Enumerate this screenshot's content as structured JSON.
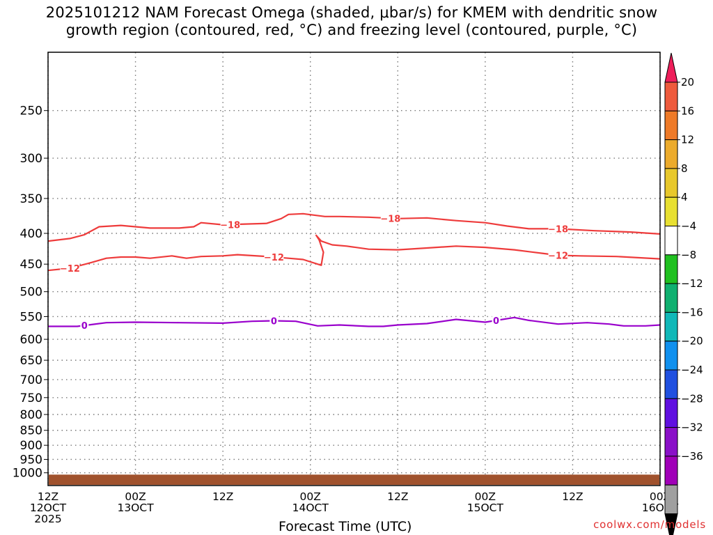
{
  "title": {
    "line1": "2025101212 NAM Forecast Omega (shaded, μbar/s) for KMEM with dendritic snow",
    "line2": "growth region (contoured, red, °C) and freezing level (contoured, purple, °C)"
  },
  "credit": "coolwx.com/models",
  "colors": {
    "snow_contour": "#ee3b3b",
    "freezing_contour": "#9900cc",
    "terrain": "#a0522d"
  },
  "chart_data": {
    "type": "line",
    "title": "2025101212 NAM Forecast Omega (shaded, μbar/s) for KMEM with dendritic snow growth region (contoured, red, °C) and freezing level (contoured, purple, °C)",
    "xlabel": "Forecast Time (UTC)",
    "ylabel": "",
    "xlim_hours": [
      0,
      84
    ],
    "yaxis": "pressure (hPa), log scale, inverted",
    "ylim": [
      1050,
      200
    ],
    "yticks": [
      250,
      300,
      350,
      400,
      450,
      500,
      550,
      600,
      650,
      700,
      750,
      800,
      850,
      900,
      950,
      1000
    ],
    "xticks": [
      {
        "hour": 0,
        "line1": "12Z",
        "line2": "12OCT",
        "line3": "2025"
      },
      {
        "hour": 12,
        "line1": "00Z",
        "line2": "13OCT",
        "line3": ""
      },
      {
        "hour": 24,
        "line1": "12Z",
        "line2": "",
        "line3": ""
      },
      {
        "hour": 36,
        "line1": "00Z",
        "line2": "14OCT",
        "line3": ""
      },
      {
        "hour": 48,
        "line1": "12Z",
        "line2": "",
        "line3": ""
      },
      {
        "hour": 60,
        "line1": "00Z",
        "line2": "15OCT",
        "line3": ""
      },
      {
        "hour": 72,
        "line1": "12Z",
        "line2": "",
        "line3": ""
      },
      {
        "hour": 84,
        "line1": "00Z",
        "line2": "16OCT",
        "line3": ""
      }
    ],
    "series": [
      {
        "name": "-18",
        "color": "#ee3b3b",
        "label": "−18",
        "x": [
          0,
          3,
          5,
          7,
          10,
          14,
          18,
          20,
          21,
          24,
          30,
          32,
          33,
          35,
          38,
          40,
          44,
          48,
          52,
          56,
          60,
          63,
          66,
          70,
          75,
          80,
          84
        ],
        "p": [
          412,
          408,
          402,
          390,
          388,
          392,
          392,
          390,
          384,
          387,
          385,
          378,
          372,
          371,
          375,
          375,
          376,
          378,
          377,
          381,
          384,
          389,
          393,
          393,
          396,
          398,
          401
        ],
        "labels_at": [
          25,
          47,
          70
        ]
      },
      {
        "name": "-12",
        "color": "#ee3b3b",
        "label": "−12",
        "x": [
          0,
          3,
          6,
          8,
          10,
          12,
          14,
          17,
          19,
          21,
          24,
          26,
          30,
          33,
          35,
          37.5,
          37.8,
          37.2,
          36.8,
          37.5,
          39,
          41,
          44,
          48,
          52,
          56,
          60,
          64,
          68,
          70,
          73,
          78,
          84
        ],
        "p": [
          461,
          457,
          447,
          440,
          438,
          438,
          440,
          436,
          440,
          437,
          436,
          434,
          437,
          440,
          442,
          452,
          430,
          410,
          403,
          412,
          418,
          420,
          425,
          426,
          423,
          420,
          422,
          426,
          432,
          435,
          436,
          437,
          441
        ],
        "labels_at": [
          3,
          31,
          70
        ]
      },
      {
        "name": "0",
        "color": "#9900cc",
        "label": "0",
        "x": [
          0,
          4,
          6,
          8,
          12,
          18,
          24,
          28,
          31,
          34,
          37,
          40,
          44,
          46,
          48,
          52,
          56,
          60,
          64,
          66,
          70,
          74,
          77,
          79,
          82,
          84
        ],
        "p": [
          571,
          571,
          567,
          563,
          562,
          563,
          564,
          560,
          559,
          560,
          570,
          568,
          571,
          571,
          568,
          565,
          556,
          562,
          552,
          558,
          566,
          563,
          566,
          570,
          570,
          568
        ],
        "labels_at": [
          5,
          31,
          61.5
        ]
      }
    ],
    "terrain": {
      "name": "surface",
      "top_p": 1007
    },
    "colorbar": {
      "ticks": [
        "20",
        "16",
        "12",
        "8",
        "4",
        "−4",
        "−8",
        "−12",
        "−16",
        "−20",
        "−24",
        "−28",
        "−32",
        "−36"
      ],
      "colors": [
        "#ee1e5a",
        "#ee5a3c",
        "#ee7a28",
        "#ecab2c",
        "#e8c82c",
        "#e8e032",
        "#ffffff",
        "#20c020",
        "#10b070",
        "#10b8b8",
        "#1090ee",
        "#2050e0",
        "#6010e0",
        "#8a10c8",
        "#a000b8",
        "#a0a0a0",
        "#000000"
      ]
    }
  }
}
